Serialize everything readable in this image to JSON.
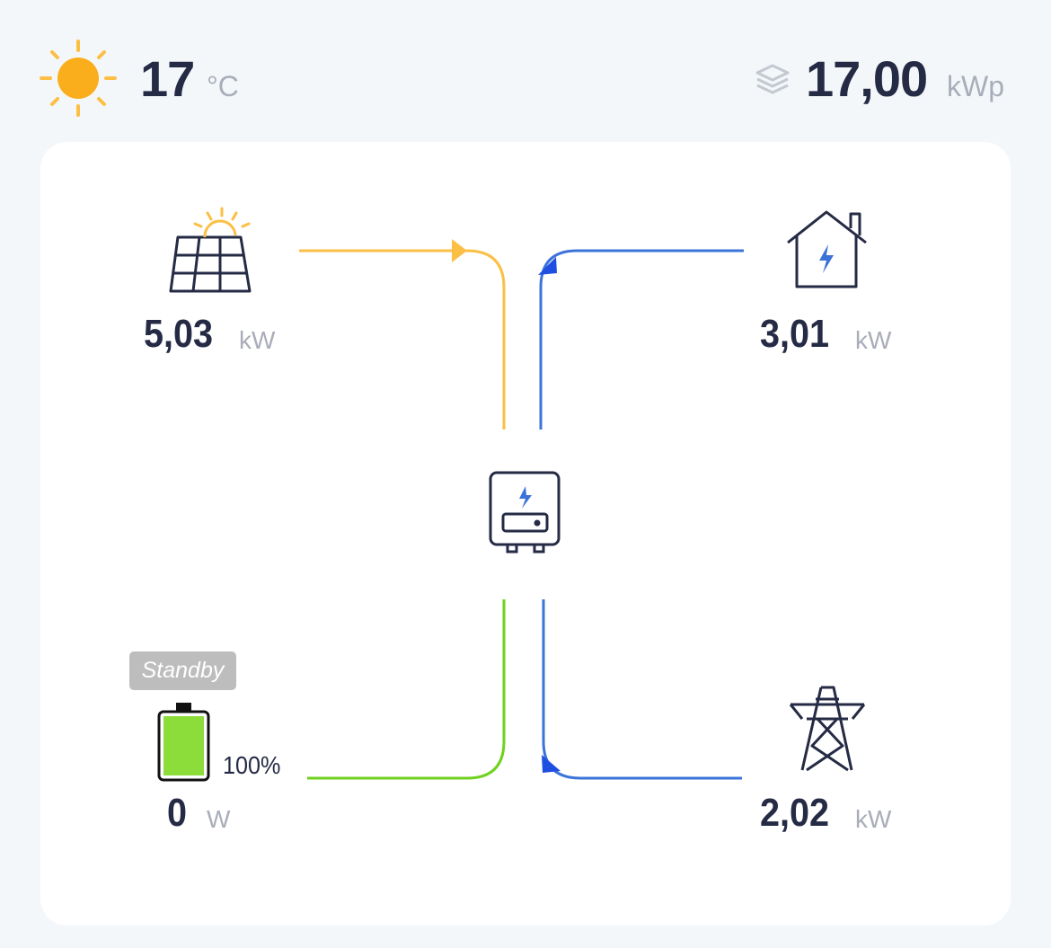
{
  "header": {
    "temperature": "17",
    "temperature_unit": "°C",
    "capacity": "17,00",
    "capacity_unit": "kWp",
    "weather_icon": "sun-icon",
    "capacity_icon": "layers-icon"
  },
  "solar": {
    "value": "5,03",
    "unit": "kW",
    "icon": "solar-panel-icon"
  },
  "home": {
    "value": "3,01",
    "unit": "kW",
    "icon": "house-icon"
  },
  "battery": {
    "status": "Standby",
    "soc": "100%",
    "soc_level": 100,
    "value": "0",
    "unit": "W",
    "icon": "battery-icon"
  },
  "grid": {
    "value": "2,02",
    "unit": "kW",
    "icon": "power-tower-icon"
  },
  "inverter": {
    "icon": "inverter-icon"
  },
  "colors": {
    "solar_flow": "#fcbf45",
    "home_flow": "#3b73d9",
    "battery_flow": "#6fd21e",
    "grid_flow": "#3b73d9",
    "battery_fill": "#8ddd3a",
    "text": "#262b45"
  }
}
